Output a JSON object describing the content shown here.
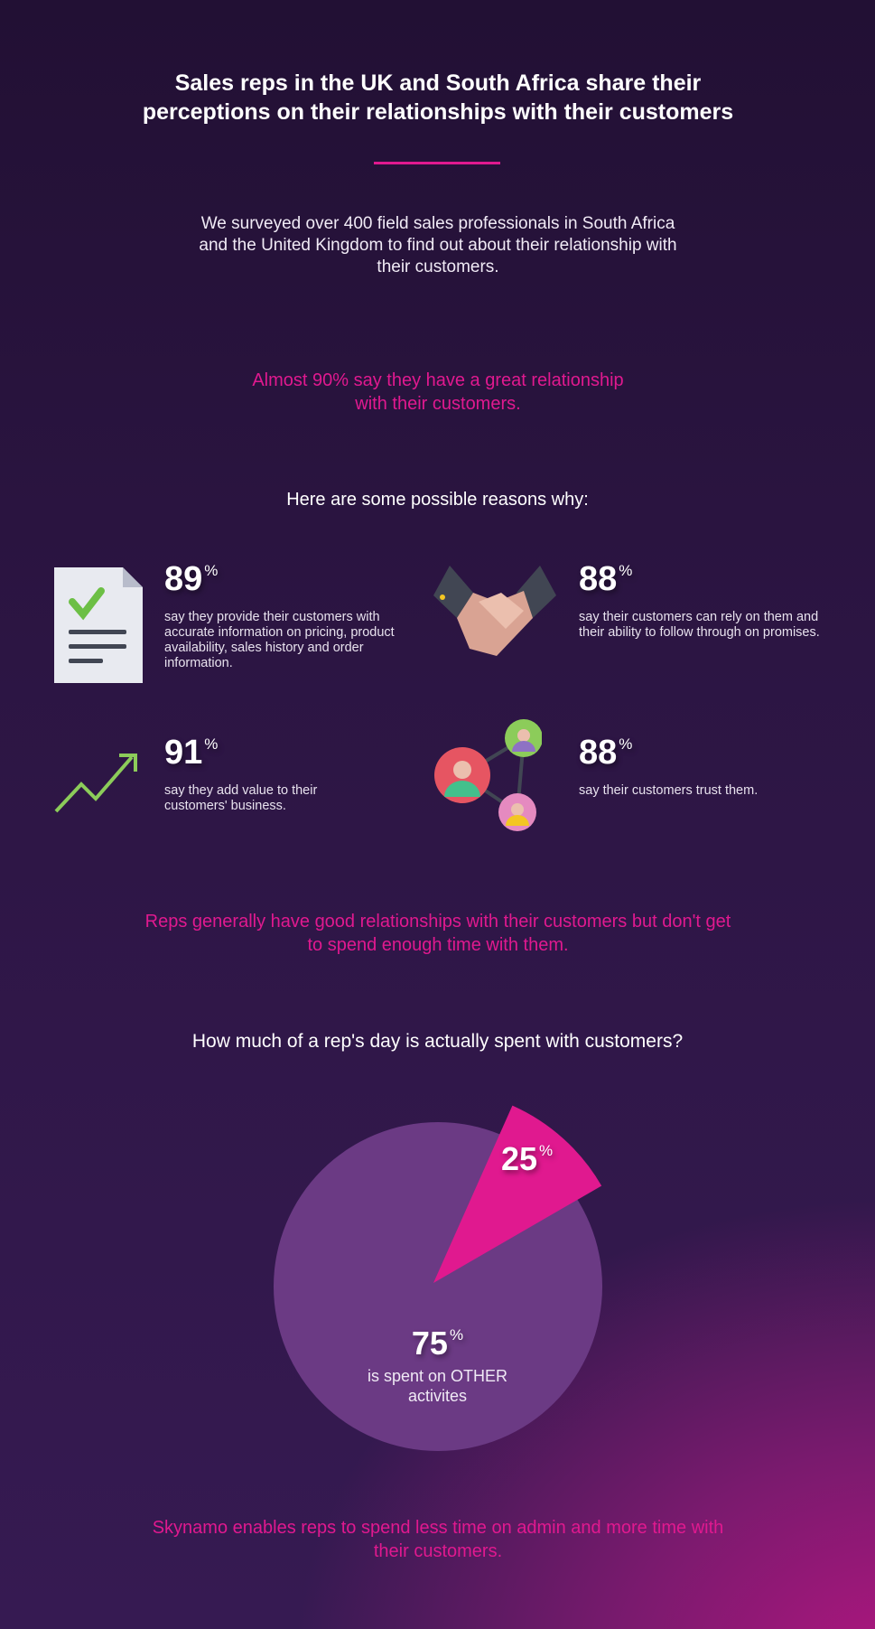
{
  "title": "Sales reps in the UK and South Africa share their perceptions on their relationships with their customers",
  "intro": "We surveyed over 400 field sales professionals in South Africa and the United Kingdom to find out about their relationship with their customers.",
  "highlight1": "Almost 90% say they have a great relationship with their customers.",
  "reasons_heading": "Here are some possible reasons why:",
  "stats": [
    {
      "value": "89",
      "unit": "%",
      "text": "say they provide their customers with accurate information on pricing, product availability, sales history and order information.",
      "icon": "document-check-icon"
    },
    {
      "value": "88",
      "unit": "%",
      "text": "say their customers can rely on them and their ability to follow through on promises.",
      "icon": "handshake-icon"
    },
    {
      "value": "91",
      "unit": "%",
      "text": "say they add value to their customers' business.",
      "icon": "trend-up-icon"
    },
    {
      "value": "88",
      "unit": "%",
      "text": "say their customers trust them.",
      "icon": "network-people-icon"
    }
  ],
  "highlight2": "Reps generally have good relationships with their customers but don't get to spend enough time with them.",
  "question": "How much of a rep's day is actually spent with customers?",
  "chart_data": {
    "type": "pie",
    "slices": [
      {
        "label": "25",
        "unit": "%",
        "value": 25,
        "color": "#e0198f"
      },
      {
        "label": "75",
        "unit": "%",
        "value": 75,
        "caption": "is spent on OTHER activites",
        "color": "#6b3a84"
      }
    ]
  },
  "footer": "Skynamo enables reps to spend less time on admin and more time with their customers.",
  "colors": {
    "accent": "#e0198f",
    "pie": "#6b3a84"
  }
}
